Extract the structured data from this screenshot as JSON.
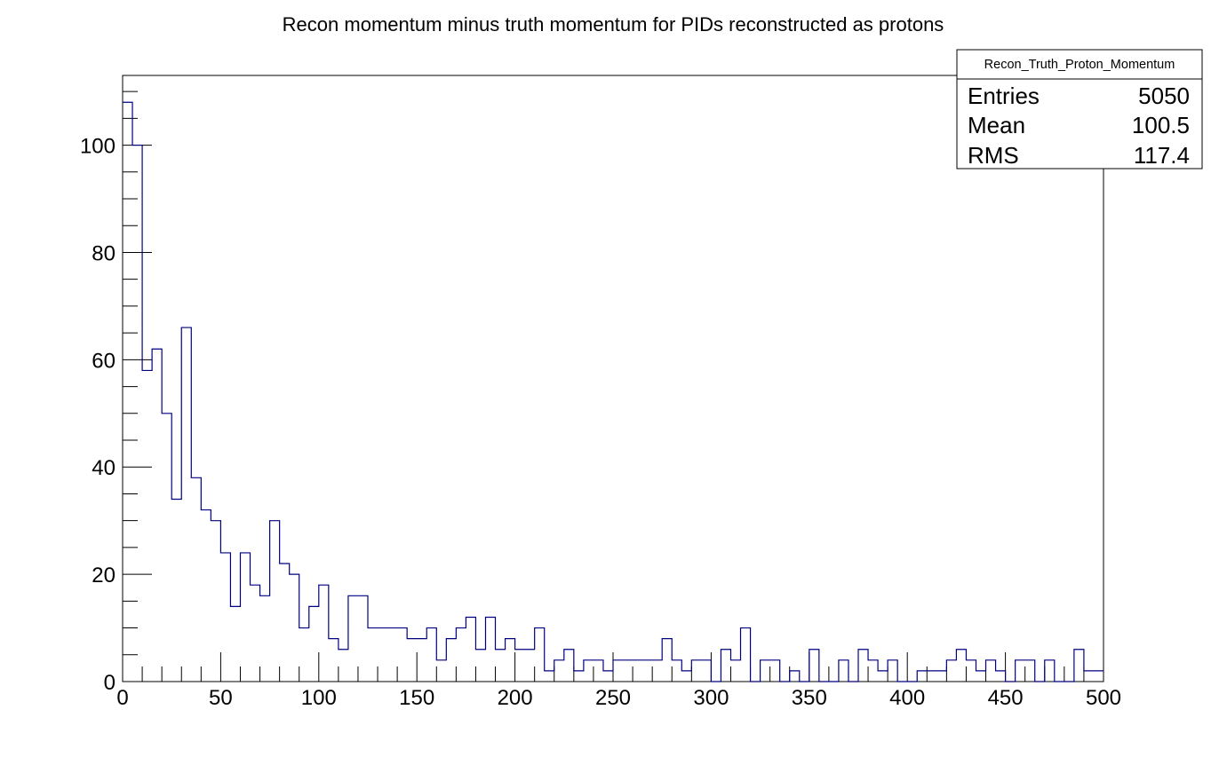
{
  "chart_data": {
    "type": "bar",
    "title": "Recon momentum minus truth momentum for PIDs reconstructed as protons",
    "xlabel": "",
    "ylabel": "",
    "xlim": [
      0,
      500
    ],
    "ylim": [
      0,
      113
    ],
    "bin_width": 5,
    "x_ticks": [
      0,
      50,
      100,
      150,
      200,
      250,
      300,
      350,
      400,
      450,
      500
    ],
    "y_ticks": [
      0,
      20,
      40,
      60,
      80,
      100
    ],
    "line_color": "#000080",
    "grid": false,
    "legend": "none",
    "values": [
      108,
      100,
      58,
      62,
      50,
      34,
      66,
      38,
      32,
      30,
      24,
      14,
      24,
      18,
      16,
      30,
      22,
      20,
      10,
      14,
      18,
      8,
      6,
      16,
      16,
      10,
      10,
      10,
      10,
      8,
      8,
      10,
      4,
      8,
      10,
      12,
      6,
      12,
      6,
      8,
      6,
      6,
      10,
      2,
      4,
      6,
      2,
      4,
      4,
      2,
      4,
      4,
      4,
      4,
      4,
      8,
      4,
      2,
      4,
      4,
      0,
      6,
      4,
      10,
      0,
      4,
      4,
      0,
      2,
      0,
      6,
      0,
      0,
      4,
      0,
      6,
      4,
      2,
      4,
      0,
      0,
      2,
      2,
      2,
      4,
      6,
      4,
      2,
      4,
      2,
      0,
      4,
      4,
      0,
      4,
      0,
      0,
      6,
      2,
      2
    ],
    "stats_box": {
      "name": "Recon_Truth_Proton_Momentum",
      "rows": [
        {
          "label": "Entries",
          "value": "5050"
        },
        {
          "label": "Mean",
          "value": "100.5"
        },
        {
          "label": "RMS",
          "value": "117.4"
        }
      ]
    }
  }
}
